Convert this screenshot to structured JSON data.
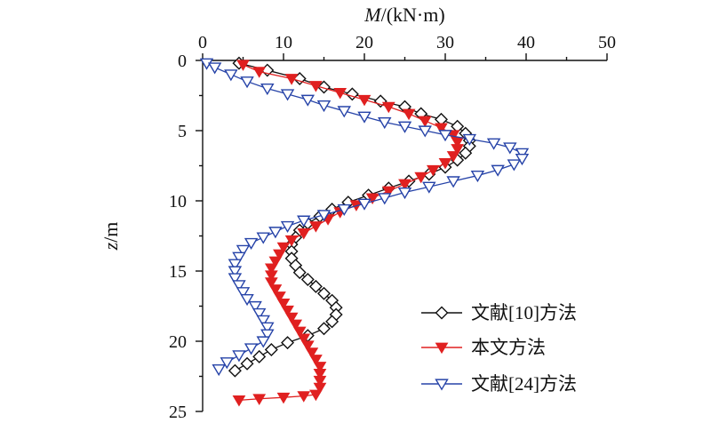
{
  "chart_data": {
    "type": "line",
    "xlabel_italic": "M",
    "xlabel_rest": "/(kN·m)",
    "ylabel_italic": "z",
    "ylabel_rest": "/m",
    "xlim": [
      0,
      50
    ],
    "ylim": [
      0,
      25
    ],
    "y_inverted": true,
    "x_axis_position": "top",
    "x_ticks": [
      0,
      10,
      20,
      30,
      40,
      50
    ],
    "y_ticks": [
      0,
      5,
      10,
      15,
      20,
      25
    ],
    "grid": false,
    "legend_position": "bottom-right",
    "series": [
      {
        "name": "文献[10]方法",
        "color": "#111111",
        "marker": "diamond-open",
        "x": [
          4.5,
          8,
          12,
          15,
          18.5,
          22,
          25,
          27,
          29.5,
          31.5,
          32.5,
          33,
          33,
          32.5,
          31.5,
          30,
          28,
          25.5,
          23,
          20.5,
          18,
          16,
          14.5,
          13,
          12,
          11.5,
          11,
          11,
          11,
          11.5,
          12,
          13,
          14,
          15,
          16,
          16.5,
          16.5,
          16,
          15,
          13,
          10.5,
          8.5,
          7,
          5.5,
          4
        ],
        "y": [
          0.2,
          0.7,
          1.3,
          1.9,
          2.4,
          2.9,
          3.3,
          3.8,
          4.2,
          4.7,
          5.2,
          5.7,
          6.1,
          6.6,
          7.1,
          7.6,
          8.1,
          8.6,
          9.1,
          9.6,
          10.1,
          10.6,
          11.1,
          11.6,
          12.1,
          12.6,
          13.1,
          13.6,
          14.1,
          14.6,
          15.1,
          15.6,
          16.1,
          16.6,
          17.1,
          17.6,
          18.1,
          18.6,
          19.1,
          19.6,
          20.1,
          20.6,
          21.1,
          21.6,
          22.1
        ]
      },
      {
        "name": "本文方法",
        "color": "#e02020",
        "marker": "triangle-down-filled",
        "x": [
          5,
          7,
          11,
          14,
          17,
          20,
          23,
          25.5,
          27.5,
          29.5,
          31,
          31.5,
          31.5,
          31,
          30,
          28.5,
          27,
          25,
          23,
          21,
          19,
          17,
          15.5,
          14,
          12.5,
          11,
          10,
          9.5,
          9,
          8.5,
          8.5,
          8.5,
          9,
          9.5,
          10,
          10.5,
          11,
          11.5,
          12,
          12.5,
          13,
          13.5,
          14,
          14.5,
          14.5,
          14.5,
          14.5,
          14,
          12.5,
          10,
          7,
          4.5
        ],
        "y": [
          0.3,
          0.8,
          1.3,
          1.8,
          2.3,
          2.8,
          3.3,
          3.8,
          4.3,
          4.8,
          5.3,
          5.8,
          6.3,
          6.8,
          7.3,
          7.8,
          8.3,
          8.8,
          9.3,
          9.8,
          10.3,
          10.8,
          11.3,
          11.8,
          12.3,
          12.8,
          13.3,
          13.8,
          14.3,
          14.8,
          15.3,
          15.8,
          16.3,
          16.8,
          17.3,
          17.8,
          18.3,
          18.8,
          19.3,
          19.8,
          20.3,
          20.8,
          21.3,
          21.8,
          22.3,
          22.8,
          23.3,
          23.8,
          23.9,
          24.0,
          24.1,
          24.2
        ]
      },
      {
        "name": "文献[24]方法",
        "color": "#2643a8",
        "marker": "triangle-down-open",
        "x": [
          0.5,
          1.5,
          3.5,
          5.5,
          8,
          10.5,
          13,
          15,
          17.5,
          20,
          22.5,
          25,
          27.5,
          30,
          33,
          36,
          38,
          39.5,
          39.5,
          38.5,
          36.5,
          34,
          31,
          28,
          25,
          22.5,
          20,
          17.5,
          15,
          12.5,
          10.5,
          9,
          7.5,
          6,
          5,
          4.5,
          4,
          4,
          4,
          4.5,
          5,
          5.5,
          6.5,
          7,
          7.5,
          8,
          8,
          7.5,
          6,
          4.5,
          3,
          2
        ],
        "y": [
          0.2,
          0.5,
          1.0,
          1.5,
          2.0,
          2.4,
          2.8,
          3.2,
          3.6,
          4.0,
          4.4,
          4.7,
          5.0,
          5.3,
          5.6,
          5.9,
          6.2,
          6.6,
          7.0,
          7.4,
          7.8,
          8.2,
          8.6,
          9.0,
          9.4,
          9.8,
          10.2,
          10.6,
          11.0,
          11.4,
          11.8,
          12.2,
          12.6,
          13.0,
          13.5,
          14.0,
          14.5,
          15.0,
          15.5,
          16.0,
          16.5,
          17.0,
          17.5,
          18.0,
          18.5,
          19.0,
          19.5,
          20.0,
          20.5,
          21.0,
          21.5,
          22.0
        ]
      }
    ]
  }
}
